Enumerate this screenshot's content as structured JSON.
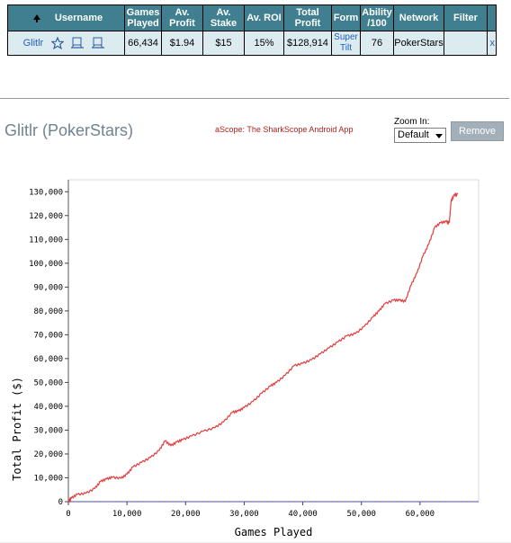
{
  "table": {
    "headers": {
      "username": "Username",
      "games_played": [
        "Games",
        "Played"
      ],
      "av_profit": [
        "Av.",
        "Profit"
      ],
      "av_stake": [
        "Av.",
        "Stake"
      ],
      "av_roi": "Av. ROI",
      "total_profit": [
        "Total",
        "Profit"
      ],
      "form": "Form",
      "ability": [
        "Ability",
        "/100"
      ],
      "network": "Network",
      "filter": "Filter"
    },
    "row": {
      "username": "Glitlr",
      "games_played": "66,434",
      "av_profit": "$1.94",
      "av_stake": "$15",
      "av_roi": "15%",
      "total_profit": "$128,914",
      "form": [
        "Super",
        "Tilt"
      ],
      "ability": "76",
      "network": "PokerStars",
      "filter": "",
      "remove": "x"
    },
    "icons": [
      "star-icon",
      "compare-icon",
      "compare-icon"
    ]
  },
  "chart_panel": {
    "title": "Glitlr (PokerStars)",
    "ascope_link": "aScope: The SharkScope Android App",
    "zoom_label": "Zoom In:",
    "zoom_value": "Default",
    "remove_label": "Remove"
  },
  "colors": {
    "header_bg": "#3f7f8f",
    "row_bg": "#dcebf0",
    "line": "#e23c3c",
    "zero_line": "#4b4bd8",
    "link": "#1f5fbf"
  },
  "chart_data": {
    "type": "line",
    "title": "",
    "xlabel": "Games Played",
    "ylabel": "Total Profit ($)",
    "xlim": [
      0,
      70000
    ],
    "ylim": [
      0,
      135000
    ],
    "xticks": [
      0,
      10000,
      20000,
      30000,
      40000,
      50000,
      60000
    ],
    "xtick_labels": [
      "0",
      "10,000",
      "20,000",
      "30,000",
      "40,000",
      "50,000",
      "60,000"
    ],
    "yticks": [
      0,
      10000,
      20000,
      30000,
      40000,
      50000,
      60000,
      70000,
      80000,
      90000,
      100000,
      110000,
      120000,
      130000
    ],
    "ytick_labels": [
      "0",
      "10,000",
      "20,000",
      "30,000",
      "40,000",
      "50,000",
      "60,000",
      "70,000",
      "80,000",
      "90,000",
      "100,000",
      "110,000",
      "120,000",
      "130,000"
    ],
    "grid": true,
    "series": [
      {
        "x": [
          0,
          500,
          1500,
          3000,
          4500,
          5500,
          6500,
          7500,
          9000,
          10000,
          11000,
          12500,
          14000,
          15500,
          16500,
          17500,
          18500,
          19500,
          21000,
          23000,
          25000,
          26500,
          28000,
          29000,
          30000,
          31500,
          33000,
          34500,
          35500,
          37000,
          38500,
          40000,
          41500,
          43000,
          44500,
          46000,
          47500,
          49000,
          50500,
          52000,
          53000,
          54000,
          55500,
          56500,
          57500,
          58500,
          59500,
          60500,
          61500,
          62500,
          63500,
          64500,
          65000,
          65300,
          65800,
          66434
        ],
        "y": [
          0,
          1500,
          3000,
          3500,
          5500,
          8500,
          9500,
          10200,
          9800,
          11500,
          14500,
          16500,
          18500,
          21500,
          25500,
          23500,
          25000,
          26000,
          27500,
          29500,
          31000,
          33500,
          37500,
          38000,
          39500,
          42000,
          45500,
          48500,
          50000,
          53000,
          57000,
          58000,
          59500,
          62000,
          64500,
          67000,
          69500,
          70500,
          73500,
          77500,
          80000,
          83000,
          84500,
          84500,
          84000,
          91000,
          96000,
          103000,
          108000,
          115000,
          117000,
          117500,
          117000,
          126000,
          128500,
          128914
        ]
      }
    ]
  }
}
